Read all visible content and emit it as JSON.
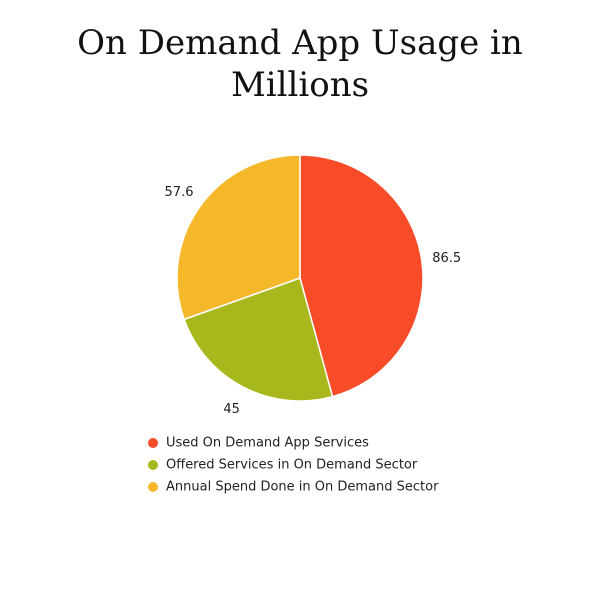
{
  "chart_data": {
    "type": "pie",
    "title": "On Demand App Usage in Millions",
    "categories": [
      "Used On Demand App Services",
      "Offered Services in On Demand Sector",
      "Annual Spend Done in On Demand Sector"
    ],
    "values": [
      86.5,
      45,
      57.6
    ],
    "colors": [
      "#f84c28",
      "#a8b81c",
      "#f5b82a"
    ]
  }
}
